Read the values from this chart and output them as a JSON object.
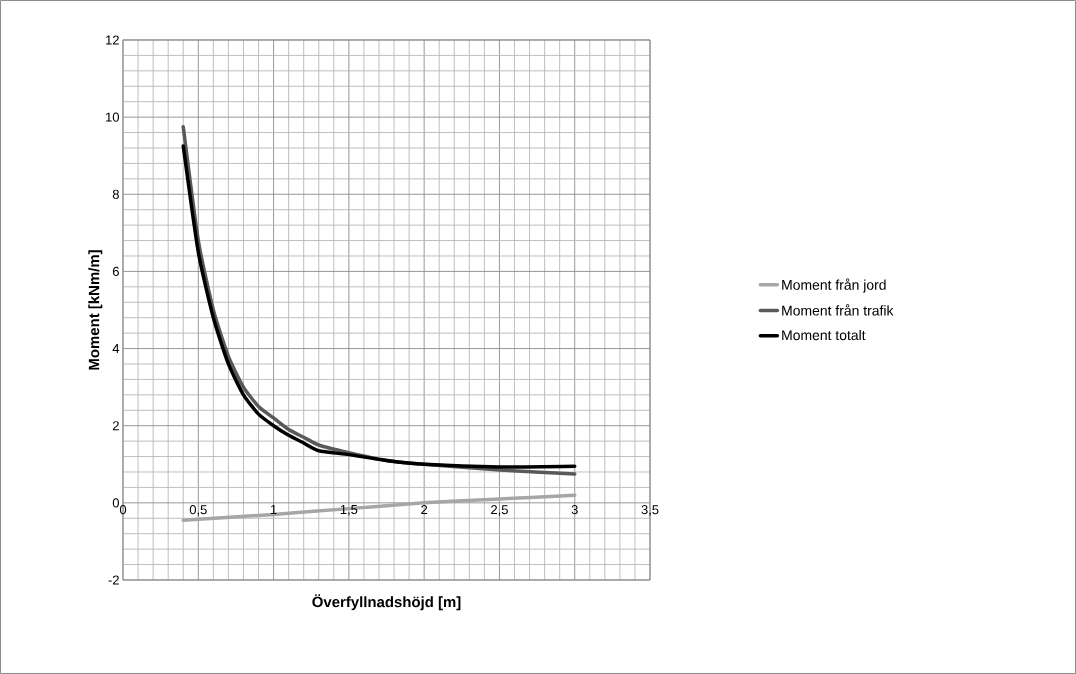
{
  "chart_data": {
    "type": "line",
    "xlabel": "Överfyllnadshöjd [m]",
    "ylabel": "Moment [kNm/m]",
    "xlim": [
      0,
      3.5
    ],
    "ylim": [
      -2,
      12
    ],
    "xticks": [
      0,
      {
        "value": 0.5,
        "label": "0,5"
      },
      1,
      {
        "value": 1.5,
        "label": "1,5"
      },
      2,
      {
        "value": 2.5,
        "label": "2,5"
      },
      3,
      {
        "value": 3.5,
        "label": "3,5"
      }
    ],
    "yticks": [
      -2,
      0,
      2,
      4,
      6,
      8,
      10,
      12
    ],
    "grid": true,
    "legend": "right",
    "marker": "none",
    "line_style": "solid",
    "series": [
      {
        "name": "Moment från jord",
        "color": "#a6a6a6",
        "x": [
          0.4,
          1.0,
          1.5,
          2.0,
          2.5,
          3.0
        ],
        "values": [
          -0.45,
          -0.3,
          -0.15,
          0.0,
          0.1,
          0.2
        ]
      },
      {
        "name": "Moment från trafik",
        "color": "#595959",
        "x": [
          0.4,
          0.5,
          0.6,
          0.7,
          0.8,
          0.9,
          1.0,
          1.1,
          1.2,
          1.3,
          1.5,
          1.75,
          2.0,
          2.5,
          3.0
        ],
        "values": [
          9.75,
          6.8,
          5.0,
          3.8,
          3.0,
          2.5,
          2.2,
          1.9,
          1.7,
          1.5,
          1.3,
          1.1,
          1.0,
          0.85,
          0.75
        ]
      },
      {
        "name": "Moment totalt",
        "color": "#000000",
        "x": [
          0.4,
          0.5,
          0.6,
          0.7,
          0.8,
          0.9,
          1.0,
          1.1,
          1.2,
          1.3,
          1.5,
          1.75,
          2.0,
          2.5,
          3.0
        ],
        "values": [
          9.25,
          6.5,
          4.8,
          3.6,
          2.8,
          2.3,
          2.0,
          1.75,
          1.55,
          1.35,
          1.25,
          1.1,
          1.0,
          0.93,
          0.95
        ]
      }
    ]
  }
}
